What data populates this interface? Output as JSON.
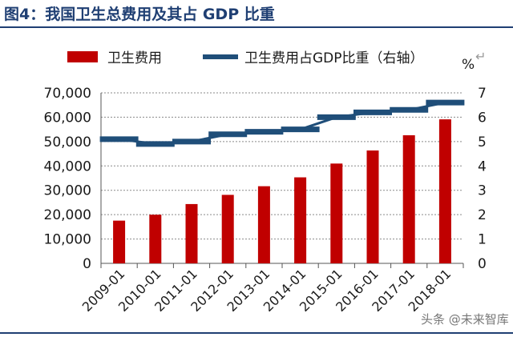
{
  "figure_title": "图4：我国卫生总费用及其占 GDP 比重",
  "watermark": "头条 @未来智库",
  "colors": {
    "bar": "#c00000",
    "line": "#1f4e79",
    "title": "#1f3f73"
  },
  "chart_data": {
    "type": "bar",
    "categories": [
      "2009-01",
      "2010-01",
      "2011-01",
      "2012-01",
      "2013-01",
      "2014-01",
      "2015-01",
      "2016-01",
      "2017-01",
      "2018-01"
    ],
    "series": [
      {
        "name": "卫生费用",
        "type": "bar",
        "axis": "left",
        "values": [
          17542,
          19980,
          24346,
          28119,
          31669,
          35312,
          40975,
          46345,
          52598,
          59122
        ]
      },
      {
        "name": "卫生费用占GDP比重（右轴）",
        "type": "line",
        "axis": "right",
        "values": [
          5.1,
          4.9,
          5.0,
          5.3,
          5.4,
          5.5,
          6.0,
          6.2,
          6.3,
          6.6
        ]
      }
    ],
    "y_left": {
      "ylim": [
        0,
        70000
      ],
      "ticks": [
        "0",
        "10,000",
        "20,000",
        "30,000",
        "40,000",
        "50,000",
        "60,000",
        "70,000"
      ]
    },
    "y_right": {
      "ylim": [
        0,
        7
      ],
      "unit": "%",
      "ticks": [
        "0",
        "1",
        "2",
        "3",
        "4",
        "5",
        "6",
        "7"
      ]
    },
    "legend": [
      "卫生费用",
      "卫生费用占GDP比重（右轴）"
    ],
    "legend_position": "top"
  }
}
